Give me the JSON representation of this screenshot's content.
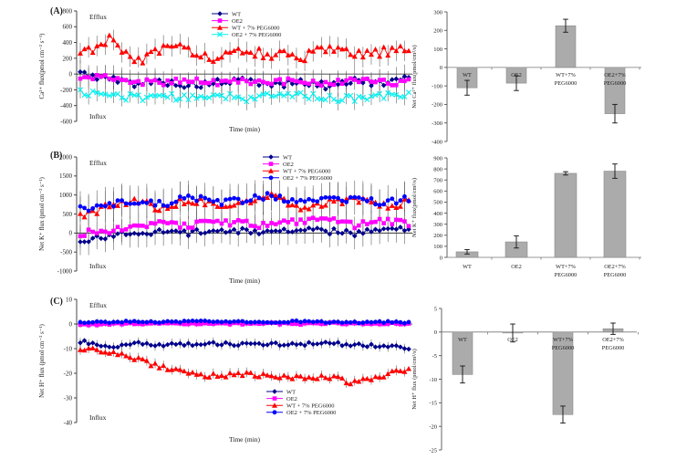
{
  "panels": [
    {
      "label": "(A)"
    },
    {
      "label": "(B)"
    },
    {
      "label": "(C)"
    }
  ],
  "chart_data": [
    {
      "id": "panel-a-line",
      "type": "line",
      "ylabel": "Ca²⁺ flux(pmol cm⁻² s⁻¹)",
      "xlabel": "Time (min)",
      "efflux_label": "Efflux",
      "influx_label": "Influx",
      "ylim": [
        -600,
        800
      ],
      "yticks": [
        800,
        600,
        400,
        200,
        0,
        -200,
        -400,
        -600
      ],
      "x_range_min": [
        0,
        60
      ],
      "grid": false,
      "legend_position": "top-center",
      "error_color": "#555555",
      "series": [
        {
          "name": "WT",
          "color": "#00008B",
          "marker": "diamond",
          "anchors": [
            10,
            -60,
            -120,
            -90,
            -150,
            -110,
            -80,
            -140,
            -100,
            -150,
            -70,
            -130,
            -60
          ],
          "jitter": 45,
          "err": 150
        },
        {
          "name": "OE2",
          "color": "#FF00FF",
          "marker": "square",
          "anchors": [
            -50,
            -30,
            -100,
            -110,
            -70,
            -120,
            -90,
            -110,
            -80,
            -120,
            -90,
            -110,
            -100
          ],
          "jitter": 40,
          "err": 120
        },
        {
          "name": "WT + 7% PEG6000",
          "color": "#FF0000",
          "marker": "triangle",
          "anchors": [
            240,
            450,
            160,
            310,
            320,
            170,
            300,
            260,
            190,
            320,
            240,
            280,
            300
          ],
          "jitter": 70,
          "err": 130
        },
        {
          "name": "OE2 + 7% PEG6000",
          "color": "#00F0F0",
          "marker": "x",
          "anchors": [
            -230,
            -260,
            -300,
            -270,
            -320,
            -250,
            -310,
            -280,
            -260,
            -300,
            -320,
            -280,
            -250
          ],
          "jitter": 45,
          "err": 110
        }
      ]
    },
    {
      "id": "panel-a-bar",
      "type": "bar",
      "ylabel": "Net Ca²⁺ flux(pmol/cm²/s)",
      "ylim": [
        -400,
        300
      ],
      "yticks": [
        300,
        200,
        100,
        0,
        -100,
        -200,
        -300,
        -400
      ],
      "categories": [
        [
          "WT"
        ],
        [
          "OE2"
        ],
        [
          "WT+7%",
          "PEG6000"
        ],
        [
          "OE2+7%",
          "PEG6000"
        ]
      ],
      "values": [
        -110,
        -85,
        225,
        -250
      ],
      "errors": [
        40,
        40,
        35,
        50
      ],
      "bar_color": "#ABABAB",
      "bar_border": "#8a8a8a",
      "error_color": "#222222",
      "label_placement": "below-axis"
    },
    {
      "id": "panel-b-line",
      "type": "line",
      "ylabel": "Net K⁺ flux (pmol cm⁻² s⁻¹)",
      "xlabel": "Time (min)",
      "efflux_label": "Efflux",
      "influx_label": "Influx",
      "ylim": [
        -1000,
        2000
      ],
      "yticks": [
        2000,
        1500,
        1000,
        500,
        0,
        -500,
        -1000
      ],
      "x_range_min": [
        0,
        60
      ],
      "grid": false,
      "legend_position": "top-right",
      "error_color": "#555555",
      "series": [
        {
          "name": "WT",
          "color": "#00008B",
          "marker": "diamond",
          "anchors": [
            -200,
            -80,
            0,
            60,
            0,
            100,
            50,
            0,
            80,
            50,
            0,
            50,
            100
          ],
          "jitter": 80,
          "err": 350
        },
        {
          "name": "OE2",
          "color": "#FF00FF",
          "marker": "square",
          "anchors": [
            0,
            80,
            160,
            260,
            200,
            300,
            250,
            200,
            300,
            400,
            200,
            300,
            260
          ],
          "jitter": 90,
          "err": 300
        },
        {
          "name": "WT + 7% PEG6000",
          "color": "#FF0000",
          "marker": "triangle",
          "anchors": [
            450,
            700,
            820,
            650,
            900,
            700,
            800,
            1000,
            650,
            800,
            900,
            700,
            820
          ],
          "jitter": 100,
          "err": 450
        },
        {
          "name": "OE2 + 7% PEG6000",
          "color": "#0000FF",
          "marker": "circle",
          "anchors": [
            620,
            760,
            860,
            750,
            950,
            800,
            860,
            1000,
            800,
            900,
            860,
            800,
            900
          ],
          "jitter": 90,
          "err": 400
        }
      ]
    },
    {
      "id": "panel-b-bar",
      "type": "bar",
      "ylabel": "Net K⁺ flux(pmol/cm²/s)",
      "ylim": [
        0,
        900
      ],
      "yticks": [
        900,
        800,
        700,
        600,
        500,
        400,
        300,
        200,
        100,
        0
      ],
      "categories": [
        [
          "WT"
        ],
        [
          "OE2"
        ],
        [
          "WT+7%",
          "PEG6000"
        ],
        [
          "OE2+7%",
          "PEG6000"
        ]
      ],
      "values": [
        50,
        140,
        760,
        780
      ],
      "errors": [
        20,
        55,
        15,
        65
      ],
      "bar_color": "#ABABAB",
      "bar_border": "#8a8a8a",
      "error_color": "#222222",
      "label_placement": "bottom"
    },
    {
      "id": "panel-c-line",
      "type": "line",
      "ylabel": "Net H⁺ flux (pmol cm⁻² s⁻¹)",
      "xlabel": "Time (min)",
      "efflux_label": "Efflux",
      "influx_label": "Influx",
      "ylim": [
        -40,
        10
      ],
      "yticks": [
        10,
        0,
        -10,
        -20,
        -30,
        -40
      ],
      "x_range_min": [
        0,
        60
      ],
      "grid": false,
      "legend_position": "bottom-center",
      "error_color": "#555555",
      "series": [
        {
          "name": "WT",
          "color": "#00008B",
          "marker": "diamond",
          "anchors": [
            -7,
            -9.5,
            -8,
            -8.5,
            -8.3,
            -8,
            -8.5,
            -8,
            -8.2,
            -8,
            -8.3,
            -8.8,
            -10
          ],
          "jitter": 0.7,
          "err": 2
        },
        {
          "name": "OE2",
          "color": "#FF00FF",
          "marker": "square",
          "anchors": [
            -0.5,
            0,
            0.1,
            0.2,
            0,
            0.3,
            0,
            0.2,
            0,
            0.3,
            0.2,
            0,
            0.3
          ],
          "jitter": 0.35,
          "err": 1.2
        },
        {
          "name": "WT + 7% PEG6000",
          "color": "#FF0000",
          "marker": "triangle",
          "anchors": [
            -10,
            -11.5,
            -14,
            -17.5,
            -20,
            -21,
            -20,
            -21.5,
            -22,
            -21,
            -24,
            -21.5,
            -18
          ],
          "jitter": 1.0,
          "err": 2
        },
        {
          "name": "OE2 + 7% PEG6000",
          "color": "#0000FF",
          "marker": "circle",
          "anchors": [
            0.5,
            0.8,
            1,
            0.8,
            1,
            0.9,
            1,
            0.8,
            1,
            0.8,
            0.6,
            0.8,
            0.5
          ],
          "jitter": 0.35,
          "err": 1.2
        }
      ]
    },
    {
      "id": "panel-c-bar",
      "type": "bar",
      "ylabel": "Net H⁺ flux (pmol/cm²/s)",
      "ylim": [
        -25,
        5
      ],
      "yticks": [
        5,
        0,
        -5,
        -10,
        -15,
        -20,
        -25
      ],
      "categories": [
        [
          "WT"
        ],
        [
          "OE2"
        ],
        [
          "WT+7%",
          "PEG6000"
        ],
        [
          "OE2+7%",
          "PEG6000"
        ]
      ],
      "values": [
        -9,
        -0.2,
        -17.5,
        0.7
      ],
      "errors": [
        1.8,
        1.9,
        1.8,
        1.2
      ],
      "bar_color": "#ABABAB",
      "bar_border": "#8a8a8a",
      "error_color": "#222222",
      "label_placement": "below-axis"
    }
  ]
}
